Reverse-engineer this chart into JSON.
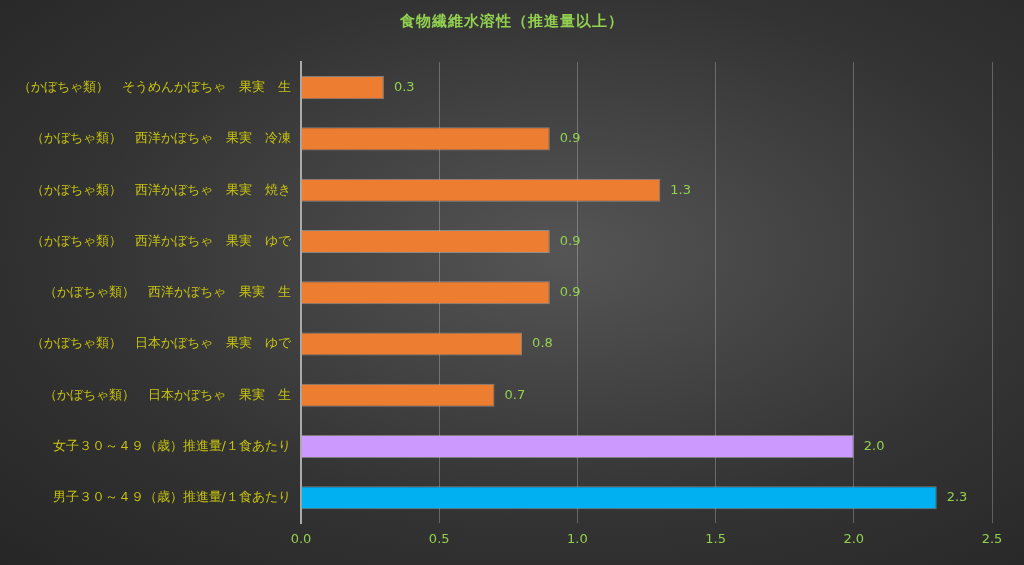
{
  "chart_data": {
    "type": "bar",
    "orientation": "horizontal",
    "title": "食物繊維水溶性（推進量以上）",
    "categories": [
      "（かぼちゃ類）　そうめんかぼちゃ　果実　生",
      "（かぼちゃ類）　西洋かぼちゃ　果実　冷凍",
      "（かぼちゃ類）　西洋かぼちゃ　果実　焼き",
      "（かぼちゃ類）　西洋かぼちゃ　果実　ゆで",
      "（かぼちゃ類）　西洋かぼちゃ　果実　生",
      "（かぼちゃ類）　日本かぼちゃ　果実　ゆで",
      "（かぼちゃ類）　日本かぼちゃ　果実　生",
      "女子３０～４９（歳）推進量/１食あたり",
      "男子３０～４９（歳）推進量/１食あたり"
    ],
    "values": [
      0.3,
      0.9,
      1.3,
      0.9,
      0.9,
      0.8,
      0.7,
      2.0,
      2.3
    ],
    "value_labels": [
      "0.3",
      "0.9",
      "1.3",
      "0.9",
      "0.9",
      "0.8",
      "0.7",
      "2.0",
      "2.3"
    ],
    "colors": [
      "#ed7d31",
      "#ed7d31",
      "#ed7d31",
      "#ed7d31",
      "#ed7d31",
      "#ed7d31",
      "#ed7d31",
      "#cc99ff",
      "#00b0f0"
    ],
    "xlim": [
      0,
      2.5
    ],
    "xticks": [
      {
        "value": 0,
        "label": "0.0"
      },
      {
        "value": 0.5,
        "label": "0.5"
      },
      {
        "value": 1,
        "label": "1.0"
      },
      {
        "value": 1.5,
        "label": "1.5"
      },
      {
        "value": 2,
        "label": "2.0"
      },
      {
        "value": 2.5,
        "label": "2.5"
      }
    ],
    "grid": "x",
    "legend": false
  }
}
